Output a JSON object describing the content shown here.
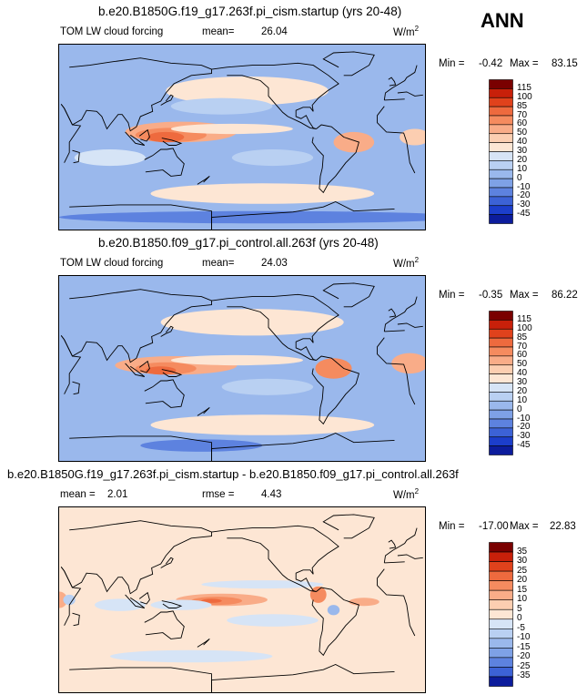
{
  "season": "ANN",
  "panels": [
    {
      "title": "b.e20.B1850G.f19_g17.263f.pi_cism.startup (yrs 20-48)",
      "variable": "TOM LW cloud forcing",
      "mean_label": "mean=",
      "mean_value": "26.04",
      "units": "W/m",
      "units_exp": "2",
      "min_label": "Min =",
      "min_value": "-0.42",
      "max_label": "Max =",
      "max_value": "83.15",
      "colorbar": {
        "labels": [
          "115",
          "100",
          "85",
          "70",
          "60",
          "50",
          "40",
          "30",
          "20",
          "10",
          "0",
          "-10",
          "-20",
          "-30",
          "-45"
        ],
        "colors": [
          "#7a0000",
          "#c8200a",
          "#e0421c",
          "#ee6a3e",
          "#f58b5f",
          "#f9ac88",
          "#fcceb1",
          "#fde6d4",
          "#d6e4f6",
          "#b9d0f2",
          "#9ab8ec",
          "#7ea1e6",
          "#5d82df",
          "#3c62d6",
          "#1c3ecb",
          "#0c1c9c"
        ]
      }
    },
    {
      "title": "b.e20.B1850.f09_g17.pi_control.all.263f (yrs 20-48)",
      "variable": "TOM LW cloud forcing",
      "mean_label": "mean=",
      "mean_value": "24.03",
      "units": "W/m",
      "units_exp": "2",
      "min_label": "Min =",
      "min_value": "-0.35",
      "max_label": "Max =",
      "max_value": "86.22",
      "colorbar": {
        "labels": [
          "115",
          "100",
          "85",
          "70",
          "60",
          "50",
          "40",
          "30",
          "20",
          "10",
          "0",
          "-10",
          "-20",
          "-30",
          "-45"
        ],
        "colors": [
          "#7a0000",
          "#c8200a",
          "#e0421c",
          "#ee6a3e",
          "#f58b5f",
          "#f9ac88",
          "#fcceb1",
          "#fde6d4",
          "#d6e4f6",
          "#b9d0f2",
          "#9ab8ec",
          "#7ea1e6",
          "#5d82df",
          "#3c62d6",
          "#1c3ecb",
          "#0c1c9c"
        ]
      }
    },
    {
      "title": "b.e20.B1850G.f19_g17.263f.pi_cism.startup - b.e20.B1850.f09_g17.pi_control.all.263f",
      "mean_label": "mean =",
      "mean_value": "2.01",
      "rmse_label": "rmse =",
      "rmse_value": "4.43",
      "units": "W/m",
      "units_exp": "2",
      "min_label": "Min =",
      "min_value": "-17.00",
      "max_label": "Max =",
      "max_value": "22.83",
      "colorbar": {
        "labels": [
          "35",
          "30",
          "25",
          "20",
          "15",
          "10",
          "5",
          "0",
          "-5",
          "-10",
          "-15",
          "-20",
          "-25",
          "-35"
        ],
        "colors": [
          "#7a0000",
          "#c8200a",
          "#e0421c",
          "#ee6a3e",
          "#f58b5f",
          "#f9ac88",
          "#fcceb1",
          "#fde6d4",
          "#d6e4f6",
          "#b9d0f2",
          "#9ab8ec",
          "#7ea1e6",
          "#5d82df",
          "#3c62d6",
          "#0c1c9c"
        ]
      }
    }
  ],
  "chart_data": [
    {
      "type": "heatmap",
      "title": "b.e20.B1850G.f19_g17.263f.pi_cism.startup (yrs 20-48)",
      "variable": "TOM LW cloud forcing",
      "units": "W/m2",
      "mean": 26.04,
      "min": -0.42,
      "max": 83.15,
      "levels": [
        -45,
        -30,
        -20,
        -10,
        0,
        10,
        20,
        30,
        40,
        50,
        60,
        70,
        85,
        100,
        115
      ]
    },
    {
      "type": "heatmap",
      "title": "b.e20.B1850.f09_g17.pi_control.all.263f (yrs 20-48)",
      "variable": "TOM LW cloud forcing",
      "units": "W/m2",
      "mean": 24.03,
      "min": -0.35,
      "max": 86.22,
      "levels": [
        -45,
        -30,
        -20,
        -10,
        0,
        10,
        20,
        30,
        40,
        50,
        60,
        70,
        85,
        100,
        115
      ]
    },
    {
      "type": "heatmap",
      "title": "b.e20.B1850G.f19_g17.263f.pi_cism.startup - b.e20.B1850.f09_g17.pi_control.all.263f",
      "units": "W/m2",
      "mean": 2.01,
      "rmse": 4.43,
      "min": -17.0,
      "max": 22.83,
      "levels": [
        -35,
        -25,
        -20,
        -15,
        -10,
        -5,
        0,
        5,
        10,
        15,
        20,
        25,
        30,
        35
      ]
    }
  ]
}
